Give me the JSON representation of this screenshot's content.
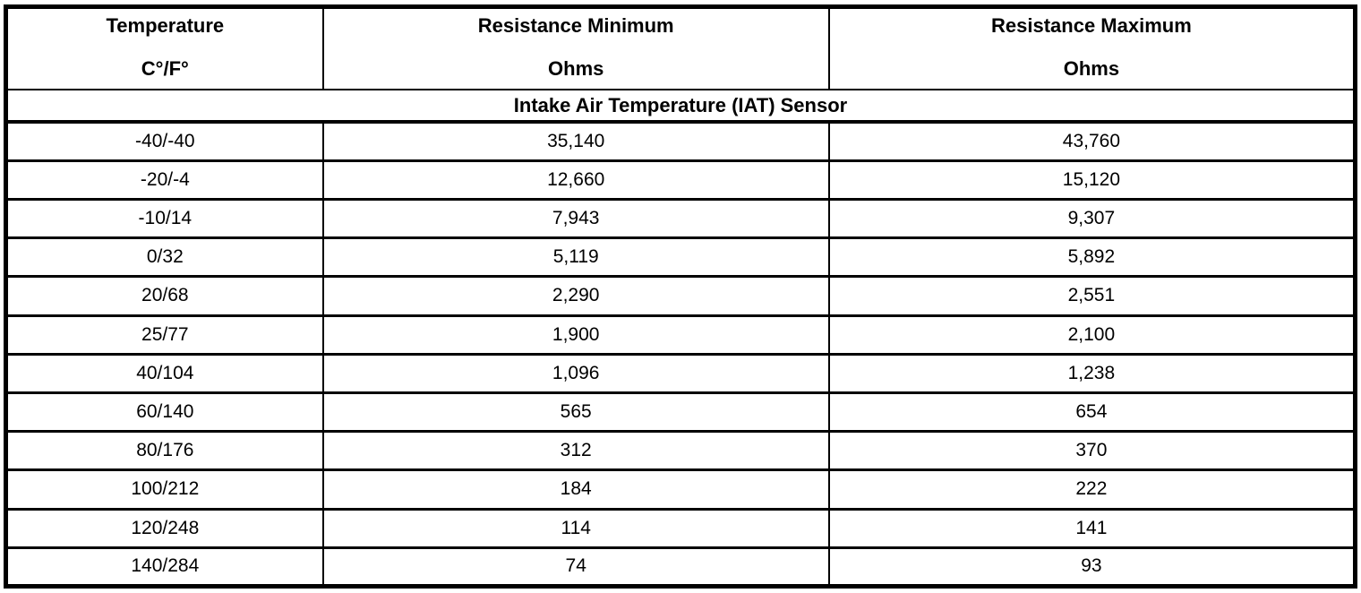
{
  "colors": {
    "border": "#000000",
    "background": "#ffffff",
    "text": "#000000"
  },
  "table": {
    "columns": [
      {
        "title": "Temperature",
        "subtitle": "C°/F°"
      },
      {
        "title": "Resistance Minimum",
        "subtitle": "Ohms"
      },
      {
        "title": "Resistance Maximum",
        "subtitle": "Ohms"
      }
    ],
    "section_title": "Intake Air Temperature (IAT) Sensor",
    "rows": [
      [
        "-40/-40",
        "35,140",
        "43,760"
      ],
      [
        "-20/-4",
        "12,660",
        "15,120"
      ],
      [
        "-10/14",
        "7,943",
        "9,307"
      ],
      [
        "0/32",
        "5,119",
        "5,892"
      ],
      [
        "20/68",
        "2,290",
        "2,551"
      ],
      [
        "25/77",
        "1,900",
        "2,100"
      ],
      [
        "40/104",
        "1,096",
        "1,238"
      ],
      [
        "60/140",
        "565",
        "654"
      ],
      [
        "80/176",
        "312",
        "370"
      ],
      [
        "100/212",
        "184",
        "222"
      ],
      [
        "120/248",
        "114",
        "141"
      ],
      [
        "140/284",
        "74",
        "93"
      ]
    ]
  },
  "chart_data": {
    "type": "table",
    "title": "Intake Air Temperature (IAT) Sensor",
    "columns": [
      "Temperature C°/F°",
      "Resistance Minimum Ohms",
      "Resistance Maximum Ohms"
    ],
    "rows": [
      [
        "-40/-40",
        35140,
        43760
      ],
      [
        "-20/-4",
        12660,
        15120
      ],
      [
        "-10/14",
        7943,
        9307
      ],
      [
        "0/32",
        5119,
        5892
      ],
      [
        "20/68",
        2290,
        2551
      ],
      [
        "25/77",
        1900,
        2100
      ],
      [
        "40/104",
        1096,
        1238
      ],
      [
        "60/140",
        565,
        654
      ],
      [
        "80/176",
        312,
        370
      ],
      [
        "100/212",
        184,
        222
      ],
      [
        "120/248",
        114,
        141
      ],
      [
        "140/284",
        74,
        93
      ]
    ]
  }
}
